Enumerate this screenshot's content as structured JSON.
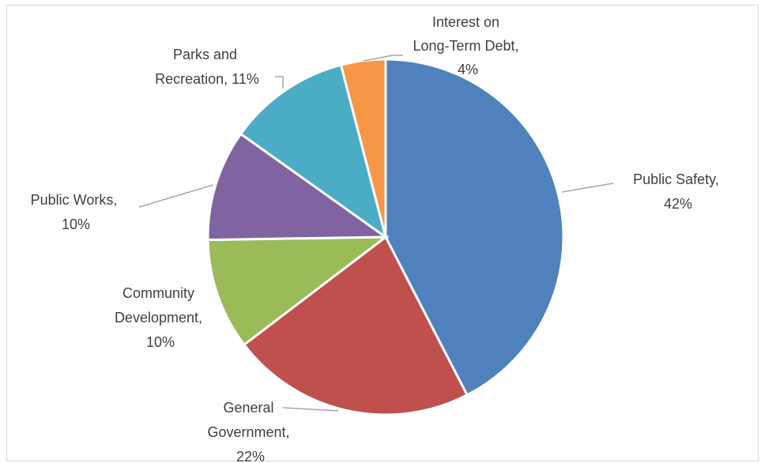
{
  "chart_data": {
    "type": "pie",
    "slices": [
      {
        "name": "Public Safety",
        "pct_label": "42%",
        "value": 42,
        "color": "#4f81bd"
      },
      {
        "name": "General Government",
        "pct_label": "22%",
        "value": 22,
        "color": "#c0504d"
      },
      {
        "name": "Community Development",
        "pct_label": "10%",
        "value": 10,
        "color": "#9bbb59"
      },
      {
        "name": "Public Works",
        "pct_label": "10%",
        "value": 10,
        "color": "#8064a2"
      },
      {
        "name": "Parks and Recreation",
        "pct_label": "11%",
        "value": 11,
        "color": "#4bacc6"
      },
      {
        "name": "Interest on Long-Term Debt",
        "pct_label": "4%",
        "value": 4,
        "color": "#f79646"
      }
    ],
    "labels": [
      {
        "lines": [
          "Public Safety,",
          "42%"
        ]
      },
      {
        "lines": [
          "General",
          "Government,",
          "22%"
        ]
      },
      {
        "lines": [
          "Community",
          "Development,",
          "10%"
        ]
      },
      {
        "lines": [
          "Public Works,",
          "10%"
        ]
      },
      {
        "lines": [
          "Parks and",
          "Recreation, 11%"
        ]
      },
      {
        "lines": [
          "Interest on",
          "Long-Term Debt,",
          "4%"
        ]
      }
    ],
    "title": "",
    "legend": "none",
    "start_angle": "12 o'clock",
    "direction": "clockwise"
  }
}
